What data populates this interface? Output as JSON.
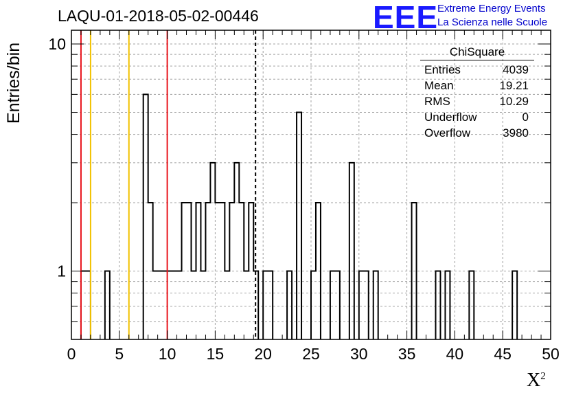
{
  "header": {
    "title": "LAQU-01-2018-05-02-00446",
    "logo_mark": "EEE",
    "logo_line1": "Extreme Energy Events",
    "logo_line2": "La Scienza nelle Scuole"
  },
  "stats_box": {
    "name": "ChiSquare",
    "rows": [
      {
        "label": "Entries",
        "value": "4039"
      },
      {
        "label": "Mean",
        "value": "19.21"
      },
      {
        "label": "RMS",
        "value": "10.29"
      },
      {
        "label": "Underflow",
        "value": "0"
      },
      {
        "label": "Overflow",
        "value": "3980"
      }
    ]
  },
  "colors": {
    "red_line": "#e8141c",
    "yellow_line": "#f2c200",
    "histogram": "#000000",
    "grid": "#a0a0a0",
    "logo": "#1a1aff"
  },
  "chart_data": {
    "type": "bar",
    "histogram_style": "step",
    "xlabel": "X²",
    "ylabel": "Entries/bin",
    "xlim": [
      0,
      50
    ],
    "ylim": [
      0.5,
      11.5
    ],
    "y_scale": "log",
    "grid": true,
    "x_ticks": [
      "0",
      "5",
      "10",
      "15",
      "20",
      "25",
      "30",
      "35",
      "40",
      "45",
      "50"
    ],
    "y_ticks": [
      "1",
      "10"
    ],
    "bins": [
      {
        "x": [
          1.0,
          2.0
        ],
        "y": 1
      },
      {
        "x": [
          3.5,
          4.0
        ],
        "y": 1
      },
      {
        "x": [
          7.5,
          8.0
        ],
        "y": 6
      },
      {
        "x": [
          8.0,
          8.5
        ],
        "y": 2
      },
      {
        "x": [
          8.5,
          10.0
        ],
        "y": 1
      },
      {
        "x": [
          10.0,
          11.5
        ],
        "y": 1
      },
      {
        "x": [
          11.5,
          12.5
        ],
        "y": 2
      },
      {
        "x": [
          12.5,
          13.0
        ],
        "y": 1
      },
      {
        "x": [
          13.0,
          13.5
        ],
        "y": 2
      },
      {
        "x": [
          13.5,
          14.0
        ],
        "y": 1
      },
      {
        "x": [
          14.0,
          14.5
        ],
        "y": 2
      },
      {
        "x": [
          14.5,
          15.0
        ],
        "y": 3
      },
      {
        "x": [
          15.0,
          16.0
        ],
        "y": 2
      },
      {
        "x": [
          16.0,
          16.5
        ],
        "y": 1
      },
      {
        "x": [
          16.5,
          17.0
        ],
        "y": 2
      },
      {
        "x": [
          17.0,
          17.5
        ],
        "y": 3
      },
      {
        "x": [
          17.5,
          18.0
        ],
        "y": 2
      },
      {
        "x": [
          18.0,
          18.5
        ],
        "y": 1
      },
      {
        "x": [
          18.5,
          19.0
        ],
        "y": 2
      },
      {
        "x": [
          19.0,
          19.5
        ],
        "y": 1
      },
      {
        "x": [
          20.0,
          21.0
        ],
        "y": 1
      },
      {
        "x": [
          22.5,
          23.0
        ],
        "y": 1
      },
      {
        "x": [
          23.5,
          24.0
        ],
        "y": 5
      },
      {
        "x": [
          25.0,
          25.5
        ],
        "y": 1
      },
      {
        "x": [
          25.5,
          26.0
        ],
        "y": 2
      },
      {
        "x": [
          27.0,
          28.0
        ],
        "y": 1
      },
      {
        "x": [
          29.0,
          29.5
        ],
        "y": 3
      },
      {
        "x": [
          30.0,
          31.0
        ],
        "y": 1
      },
      {
        "x": [
          31.5,
          32.0
        ],
        "y": 1
      },
      {
        "x": [
          35.5,
          36.0
        ],
        "y": 2
      },
      {
        "x": [
          38.0,
          38.5
        ],
        "y": 1
      },
      {
        "x": [
          39.0,
          39.5
        ],
        "y": 1
      },
      {
        "x": [
          41.5,
          42.0
        ],
        "y": 1
      },
      {
        "x": [
          46.0,
          46.5
        ],
        "y": 1
      }
    ],
    "reference_lines": [
      {
        "x": 1.0,
        "color": "red",
        "style": "solid"
      },
      {
        "x": 2.0,
        "color": "yellow",
        "style": "solid"
      },
      {
        "x": 6.0,
        "color": "yellow",
        "style": "solid"
      },
      {
        "x": 10.0,
        "color": "red",
        "style": "solid"
      },
      {
        "x": 19.21,
        "color": "black",
        "style": "dashed"
      }
    ]
  }
}
